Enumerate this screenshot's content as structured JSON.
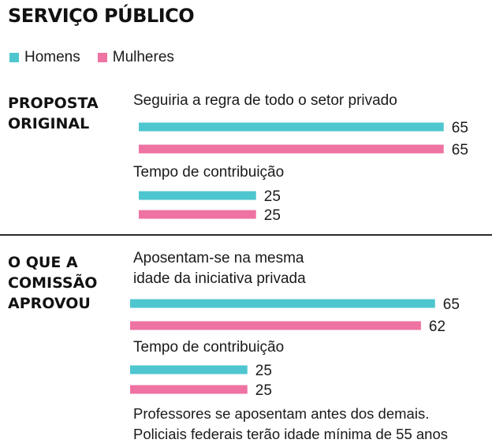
{
  "title": "SERVIÇO PÚBLICO",
  "legend": [
    {
      "label": "Homens",
      "color": "#4ec6cf"
    },
    {
      "label": "Mulheres",
      "color": "#ee73a2"
    }
  ],
  "sections": [
    {
      "label": "PROPOSTA\nORIGINAL"
    },
    {
      "label": "O QUE A\nCOMISSÃO\nAPROVOU"
    }
  ],
  "chart_data": {
    "type": "bar",
    "orientation": "horizontal",
    "series_names": [
      "Homens",
      "Mulheres"
    ],
    "groups": [
      {
        "section": "PROPOSTA ORIGINAL",
        "category": "Seguiria a regra de todo o setor privado",
        "values": [
          65,
          65
        ]
      },
      {
        "section": "PROPOSTA ORIGINAL",
        "category": "Tempo de contribuição",
        "values": [
          25,
          25
        ]
      },
      {
        "section": "O QUE A COMISSÃO APROVOU",
        "category": "Aposentam-se na mesma\nidade da iniciativa privada",
        "values": [
          65,
          62
        ]
      },
      {
        "section": "O QUE A COMISSÃO APROVOU",
        "category": "Tempo de contribuição",
        "values": [
          25,
          25
        ]
      }
    ]
  },
  "note": "Professores se aposentam antes dos demais.\nPoliciais federais terão idade mínima de 55 anos"
}
